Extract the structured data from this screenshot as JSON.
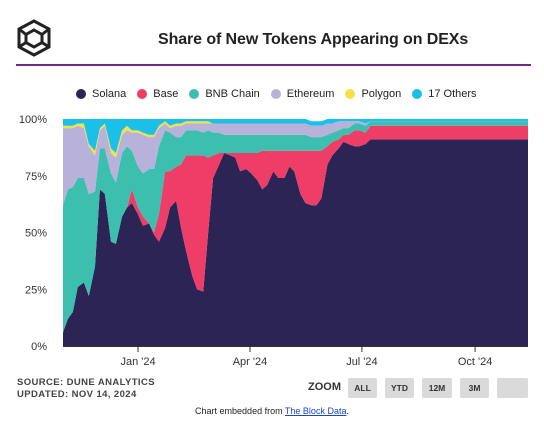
{
  "header": {
    "title": "Share of New Tokens Appearing on DEXs"
  },
  "legend": [
    {
      "name": "Solana",
      "color": "#2b2455"
    },
    {
      "name": "Base",
      "color": "#ee3d66"
    },
    {
      "name": "BNB Chain",
      "color": "#3dbfb0"
    },
    {
      "name": "Ethereum",
      "color": "#b8b2db"
    },
    {
      "name": "Polygon",
      "color": "#f5e147"
    },
    {
      "name": "17 Others",
      "color": "#1ac0e8"
    }
  ],
  "footer": {
    "source": "SOURCE: DUNE ANALYTICS",
    "updated": "UPDATED: NOV 14, 2024",
    "zoom_label": "ZOOM",
    "zoom_buttons": [
      "ALL",
      "YTD",
      "12M",
      "3M",
      ""
    ],
    "embed_prefix": "Chart embedded from ",
    "embed_link": "The Block Data",
    "embed_suffix": "."
  },
  "chart_data": {
    "type": "area",
    "stacked": true,
    "title": "Share of New Tokens Appearing on DEXs",
    "y_ticks": [
      "0%",
      "25%",
      "50%",
      "75%",
      "100%"
    ],
    "ylim": [
      0,
      100
    ],
    "x_ticks": [
      {
        "label": "Jan '24",
        "date": "2024-01-01"
      },
      {
        "label": "Apr '24",
        "date": "2024-04-01"
      },
      {
        "label": "Jul '24",
        "date": "2024-07-01"
      },
      {
        "label": "Oct '24",
        "date": "2024-10-01"
      }
    ],
    "x": [
      "2023-11-01",
      "2023-11-05",
      "2023-11-09",
      "2023-11-13",
      "2023-11-18",
      "2023-11-22",
      "2023-11-27",
      "2023-12-01",
      "2023-12-05",
      "2023-12-10",
      "2023-12-14",
      "2023-12-19",
      "2023-12-23",
      "2023-12-27",
      "2024-01-01",
      "2024-01-05",
      "2024-01-10",
      "2024-01-14",
      "2024-01-18",
      "2024-01-23",
      "2024-01-27",
      "2024-02-01",
      "2024-02-05",
      "2024-02-09",
      "2024-02-14",
      "2024-02-18",
      "2024-02-23",
      "2024-02-27",
      "2024-03-02",
      "2024-03-07",
      "2024-03-11",
      "2024-03-16",
      "2024-03-20",
      "2024-03-24",
      "2024-03-29",
      "2024-04-02",
      "2024-04-07",
      "2024-04-11",
      "2024-04-15",
      "2024-04-20",
      "2024-04-24",
      "2024-04-29",
      "2024-05-03",
      "2024-05-07",
      "2024-05-12",
      "2024-05-16",
      "2024-05-21",
      "2024-05-25",
      "2024-05-29",
      "2024-06-03",
      "2024-06-07",
      "2024-06-12",
      "2024-06-16",
      "2024-06-20",
      "2024-06-25",
      "2024-06-29",
      "2024-07-04",
      "2024-07-08",
      "2024-07-12",
      "2024-07-17",
      "2024-07-21",
      "2024-07-26",
      "2024-07-30",
      "2024-08-03",
      "2024-08-08",
      "2024-08-12",
      "2024-08-17",
      "2024-08-21",
      "2024-08-25",
      "2024-08-30",
      "2024-09-03",
      "2024-09-08",
      "2024-09-12",
      "2024-09-16",
      "2024-09-21",
      "2024-09-25",
      "2024-09-30",
      "2024-10-04",
      "2024-10-08",
      "2024-10-13",
      "2024-10-17",
      "2024-10-22",
      "2024-10-26",
      "2024-10-30",
      "2024-11-04",
      "2024-11-08",
      "2024-11-13"
    ],
    "series": [
      {
        "name": "Solana",
        "color": "#2b2455",
        "values": [
          6,
          12,
          15,
          26,
          28,
          22,
          35,
          69,
          67,
          46,
          45,
          57,
          61,
          63,
          58,
          53,
          54,
          49,
          46,
          52,
          61,
          64,
          52,
          42,
          31,
          25,
          24,
          50,
          74,
          80,
          85,
          84,
          83,
          77,
          78,
          76,
          73,
          69,
          71,
          77,
          74,
          74,
          79,
          77,
          67,
          63,
          62,
          62,
          65,
          80,
          84,
          87,
          90,
          89,
          88,
          88,
          89,
          91,
          91,
          91,
          91,
          91,
          91,
          91,
          91,
          91,
          91,
          91,
          91,
          91,
          91,
          91,
          91,
          91,
          91,
          91,
          91,
          91,
          91,
          91,
          91,
          91,
          91,
          91,
          91,
          91,
          91
        ]
      },
      {
        "name": "Base",
        "color": "#ee3d66",
        "values": [
          0,
          0,
          0,
          0,
          0,
          0,
          0,
          0,
          0,
          0,
          0,
          0,
          0,
          6,
          3,
          4,
          0,
          1,
          12,
          25,
          16,
          15,
          28,
          42,
          53,
          59,
          60,
          33,
          10,
          5,
          0,
          1,
          2,
          8,
          7,
          9,
          12,
          17,
          15,
          9,
          12,
          12,
          7,
          9,
          19,
          23,
          24,
          24,
          21,
          8,
          6,
          4,
          3,
          4,
          7,
          7,
          5,
          6,
          6,
          6,
          6,
          6,
          6,
          6,
          6,
          6,
          6,
          6,
          6,
          6,
          6,
          6,
          6,
          6,
          6,
          6,
          6,
          6,
          6,
          6,
          6,
          6,
          6,
          6,
          6,
          6,
          6
        ]
      },
      {
        "name": "BNB Chain",
        "color": "#3dbfb0",
        "values": [
          56,
          57,
          55,
          48,
          46,
          45,
          33,
          18,
          20,
          30,
          27,
          28,
          27,
          17,
          18,
          19,
          24,
          28,
          30,
          18,
          17,
          13,
          12,
          11,
          11,
          11,
          10,
          12,
          10,
          9,
          8,
          8,
          8,
          8,
          8,
          8,
          8,
          7,
          7,
          7,
          7,
          7,
          7,
          7,
          7,
          7,
          6,
          6,
          6,
          5,
          4,
          4,
          3,
          3,
          3,
          3,
          3,
          2,
          2,
          2,
          2,
          2,
          2,
          2,
          2,
          2,
          2,
          2,
          2,
          2,
          2,
          2,
          2,
          2,
          2,
          2,
          2,
          2,
          2,
          2,
          2,
          2,
          2,
          2,
          2,
          2,
          2
        ]
      },
      {
        "name": "Ethereum",
        "color": "#b8b2db",
        "values": [
          34,
          27,
          26,
          23,
          22,
          21,
          16,
          8,
          10,
          9,
          11,
          8,
          7,
          8,
          15,
          17,
          14,
          14,
          8,
          3,
          2,
          5,
          5,
          3,
          3,
          3,
          4,
          3,
          4,
          4,
          5,
          5,
          5,
          5,
          5,
          5,
          5,
          5,
          5,
          5,
          5,
          5,
          5,
          5,
          5,
          5,
          5,
          5,
          5,
          5,
          4,
          4,
          3,
          3,
          1,
          1,
          1,
          0,
          0,
          0,
          0,
          0,
          0,
          0,
          0,
          0,
          0,
          0,
          0,
          0,
          0,
          0,
          0,
          0,
          0,
          0,
          0,
          0,
          0,
          0,
          0,
          0,
          0,
          0,
          0,
          0,
          0
        ]
      },
      {
        "name": "Polygon",
        "color": "#f5e147",
        "values": [
          1,
          1,
          1,
          1,
          2,
          1,
          2,
          1,
          1,
          2,
          2,
          2,
          2,
          1,
          1,
          1,
          1,
          1,
          1,
          1,
          1,
          1,
          1,
          1,
          1,
          1,
          1,
          1,
          0,
          0,
          0,
          0,
          0,
          0,
          0,
          0,
          0,
          0,
          0,
          0,
          0,
          0,
          0,
          0,
          0,
          0,
          0,
          0,
          0,
          0,
          0,
          0,
          0,
          0,
          0,
          0,
          0,
          0,
          0,
          0,
          0,
          0,
          0,
          0,
          0,
          0,
          0,
          0,
          0,
          0,
          0,
          0,
          0,
          0,
          0,
          0,
          0,
          0,
          0,
          0,
          0,
          0,
          0,
          0,
          0,
          0,
          0
        ]
      },
      {
        "name": "17 Others",
        "color": "#1ac0e8",
        "values": [
          3,
          3,
          3,
          2,
          2,
          11,
          14,
          4,
          2,
          13,
          15,
          5,
          3,
          5,
          5,
          6,
          7,
          7,
          3,
          1,
          3,
          2,
          2,
          1,
          1,
          1,
          1,
          1,
          2,
          2,
          2,
          2,
          2,
          2,
          2,
          2,
          2,
          2,
          2,
          2,
          2,
          2,
          2,
          2,
          2,
          2,
          2,
          2,
          2,
          2,
          2,
          1,
          1,
          1,
          1,
          1,
          2,
          1,
          1,
          1,
          1,
          1,
          1,
          1,
          1,
          1,
          1,
          1,
          1,
          1,
          1,
          1,
          1,
          1,
          1,
          1,
          1,
          1,
          1,
          1,
          1,
          1,
          1,
          1,
          1,
          1,
          1
        ]
      }
    ],
    "legend_position": "top",
    "grid": false
  }
}
